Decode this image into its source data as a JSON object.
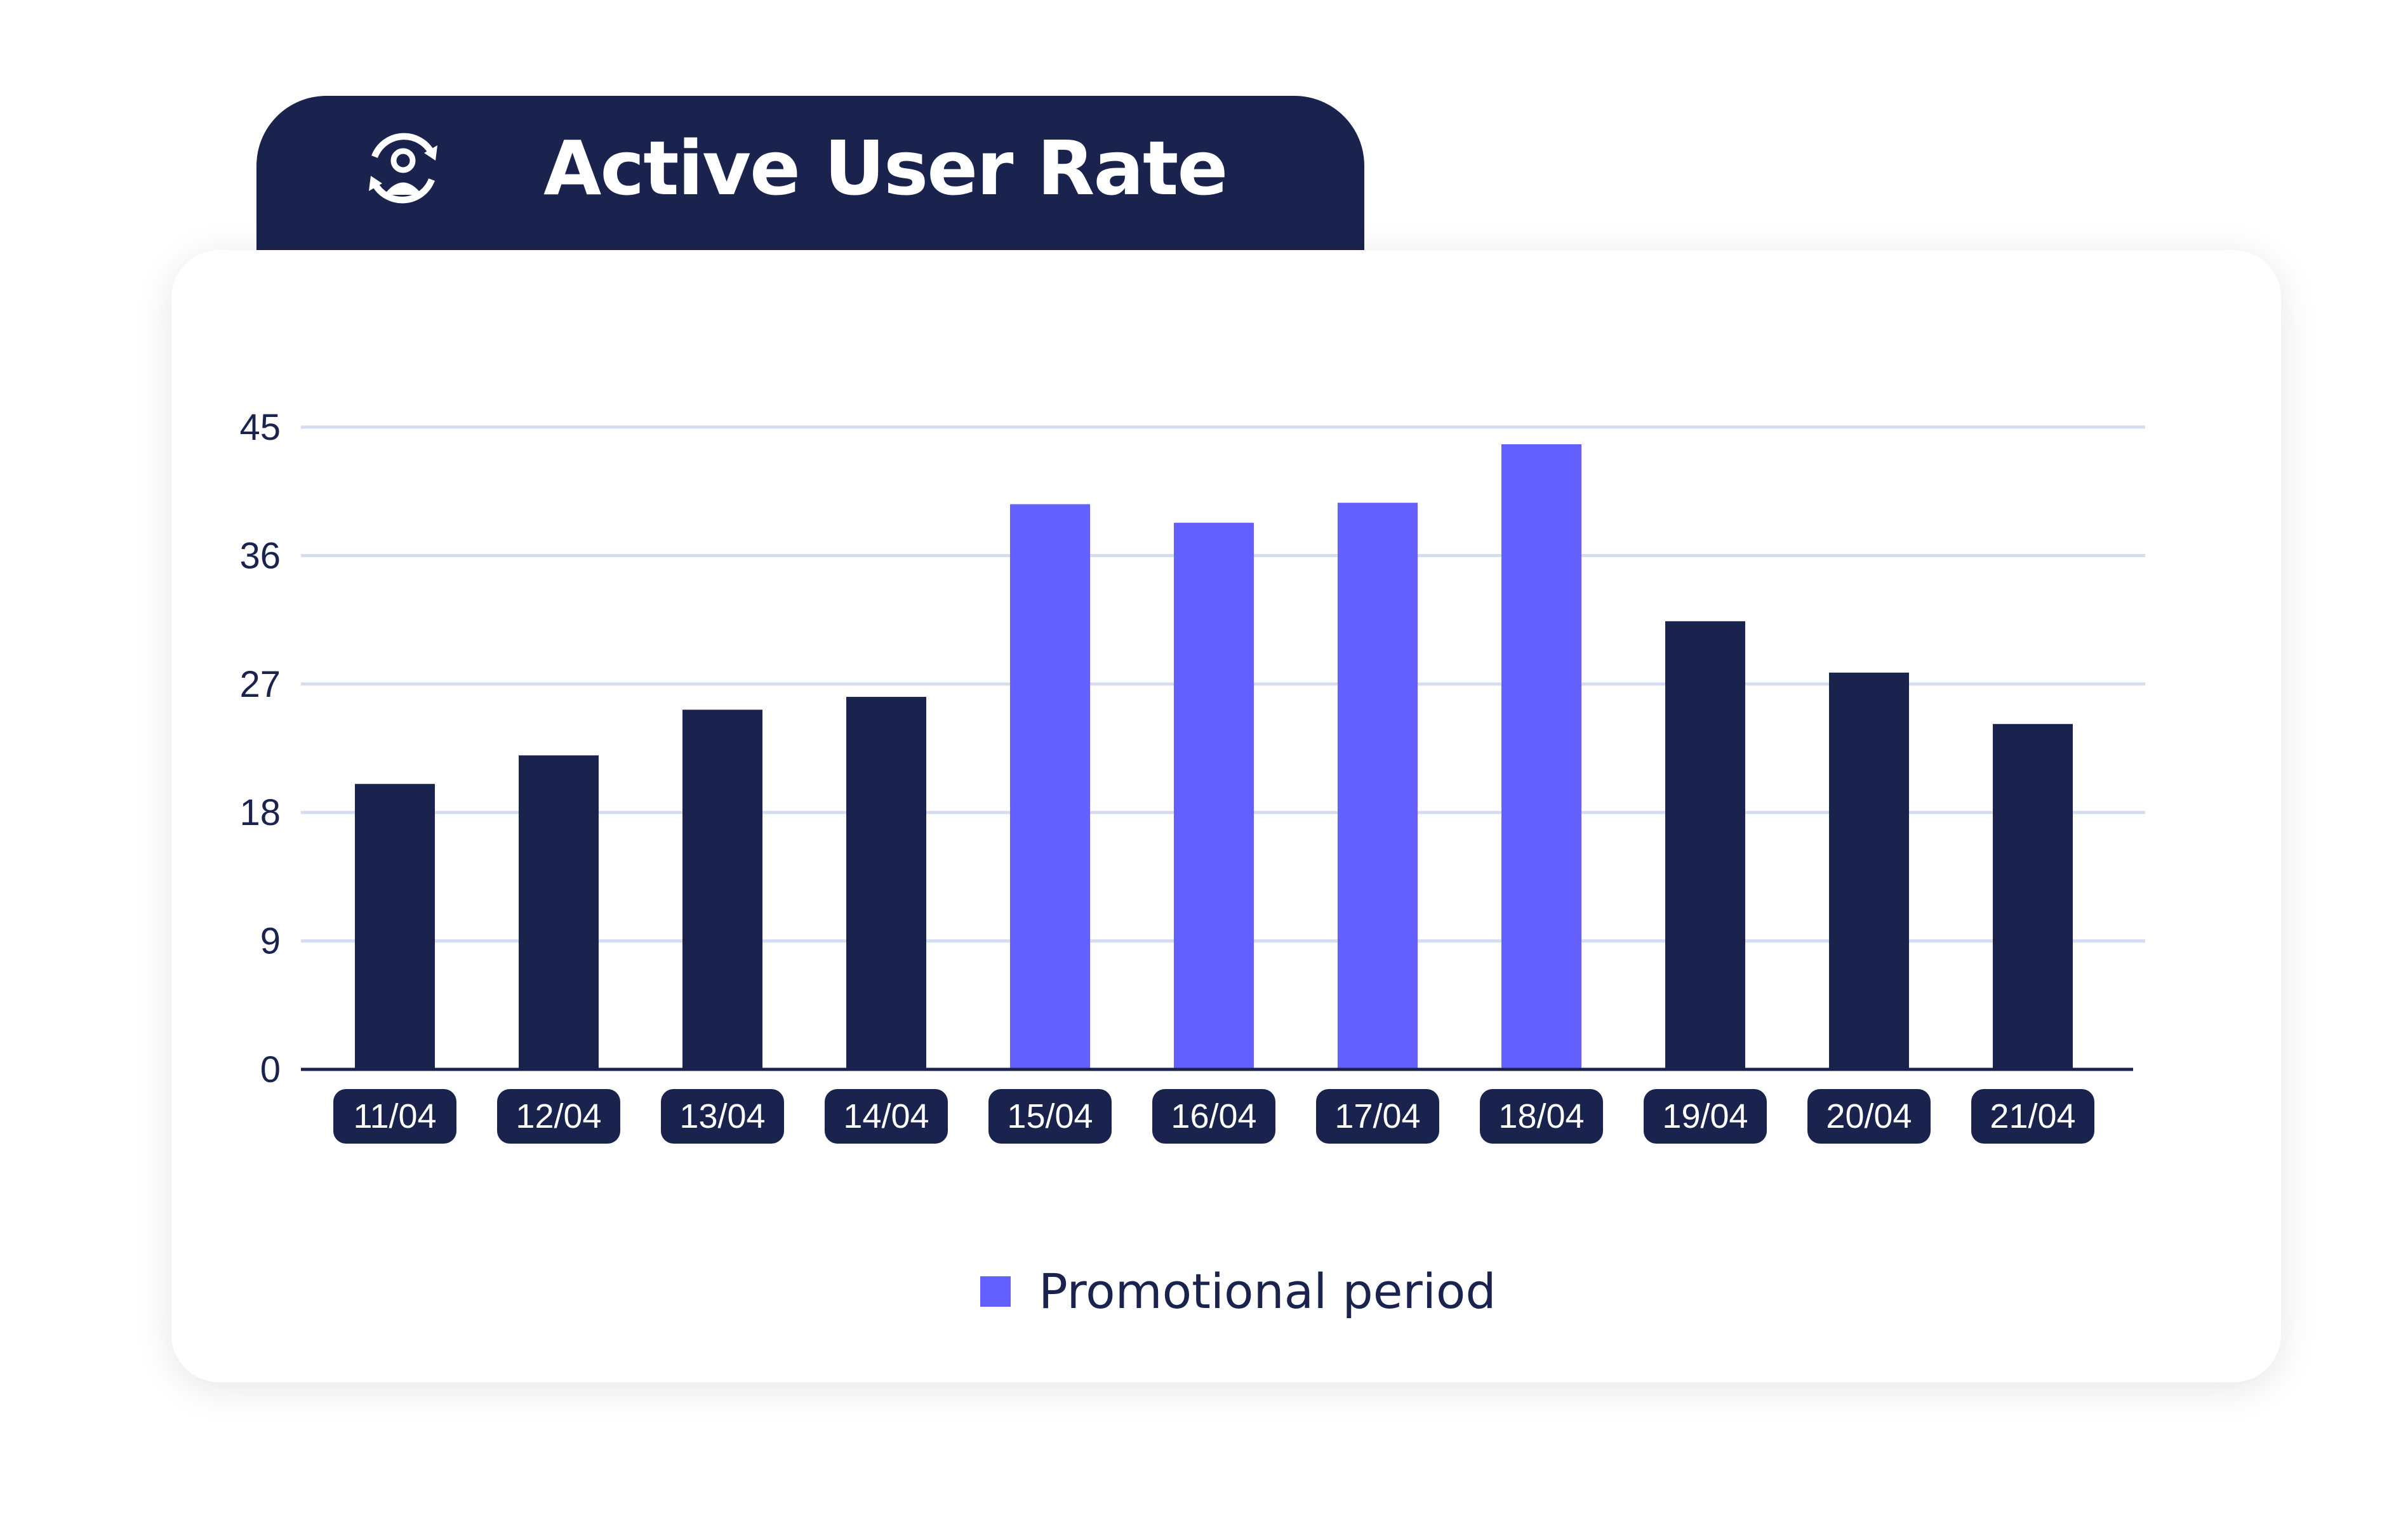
{
  "header": {
    "title": "Active User Rate",
    "icon": "user-cycle-icon"
  },
  "colors": {
    "header_bg": "#1a234e",
    "normal_bar": "#1a234e",
    "promo_bar": "#6460ff",
    "grid": "#d5ddf0"
  },
  "chart_data": {
    "type": "bar",
    "title": "Active User Rate",
    "categories": [
      "11/04",
      "12/04",
      "13/04",
      "14/04",
      "15/04",
      "16/04",
      "17/04",
      "18/04",
      "19/04",
      "20/04",
      "21/04"
    ],
    "values": [
      20,
      22,
      25.2,
      26.1,
      39.6,
      38.3,
      39.7,
      43.8,
      31.4,
      27.8,
      24.2
    ],
    "promotional": [
      false,
      false,
      false,
      false,
      true,
      true,
      true,
      true,
      false,
      false,
      false
    ],
    "yticks": [
      0,
      9,
      18,
      27,
      36,
      45
    ],
    "ylim": [
      0,
      45
    ],
    "grid": true,
    "xlabel": "",
    "ylabel": "",
    "legend": {
      "placement": "bottom",
      "entries": [
        {
          "label": "Promotional period",
          "color": "#6460ff"
        }
      ]
    }
  }
}
